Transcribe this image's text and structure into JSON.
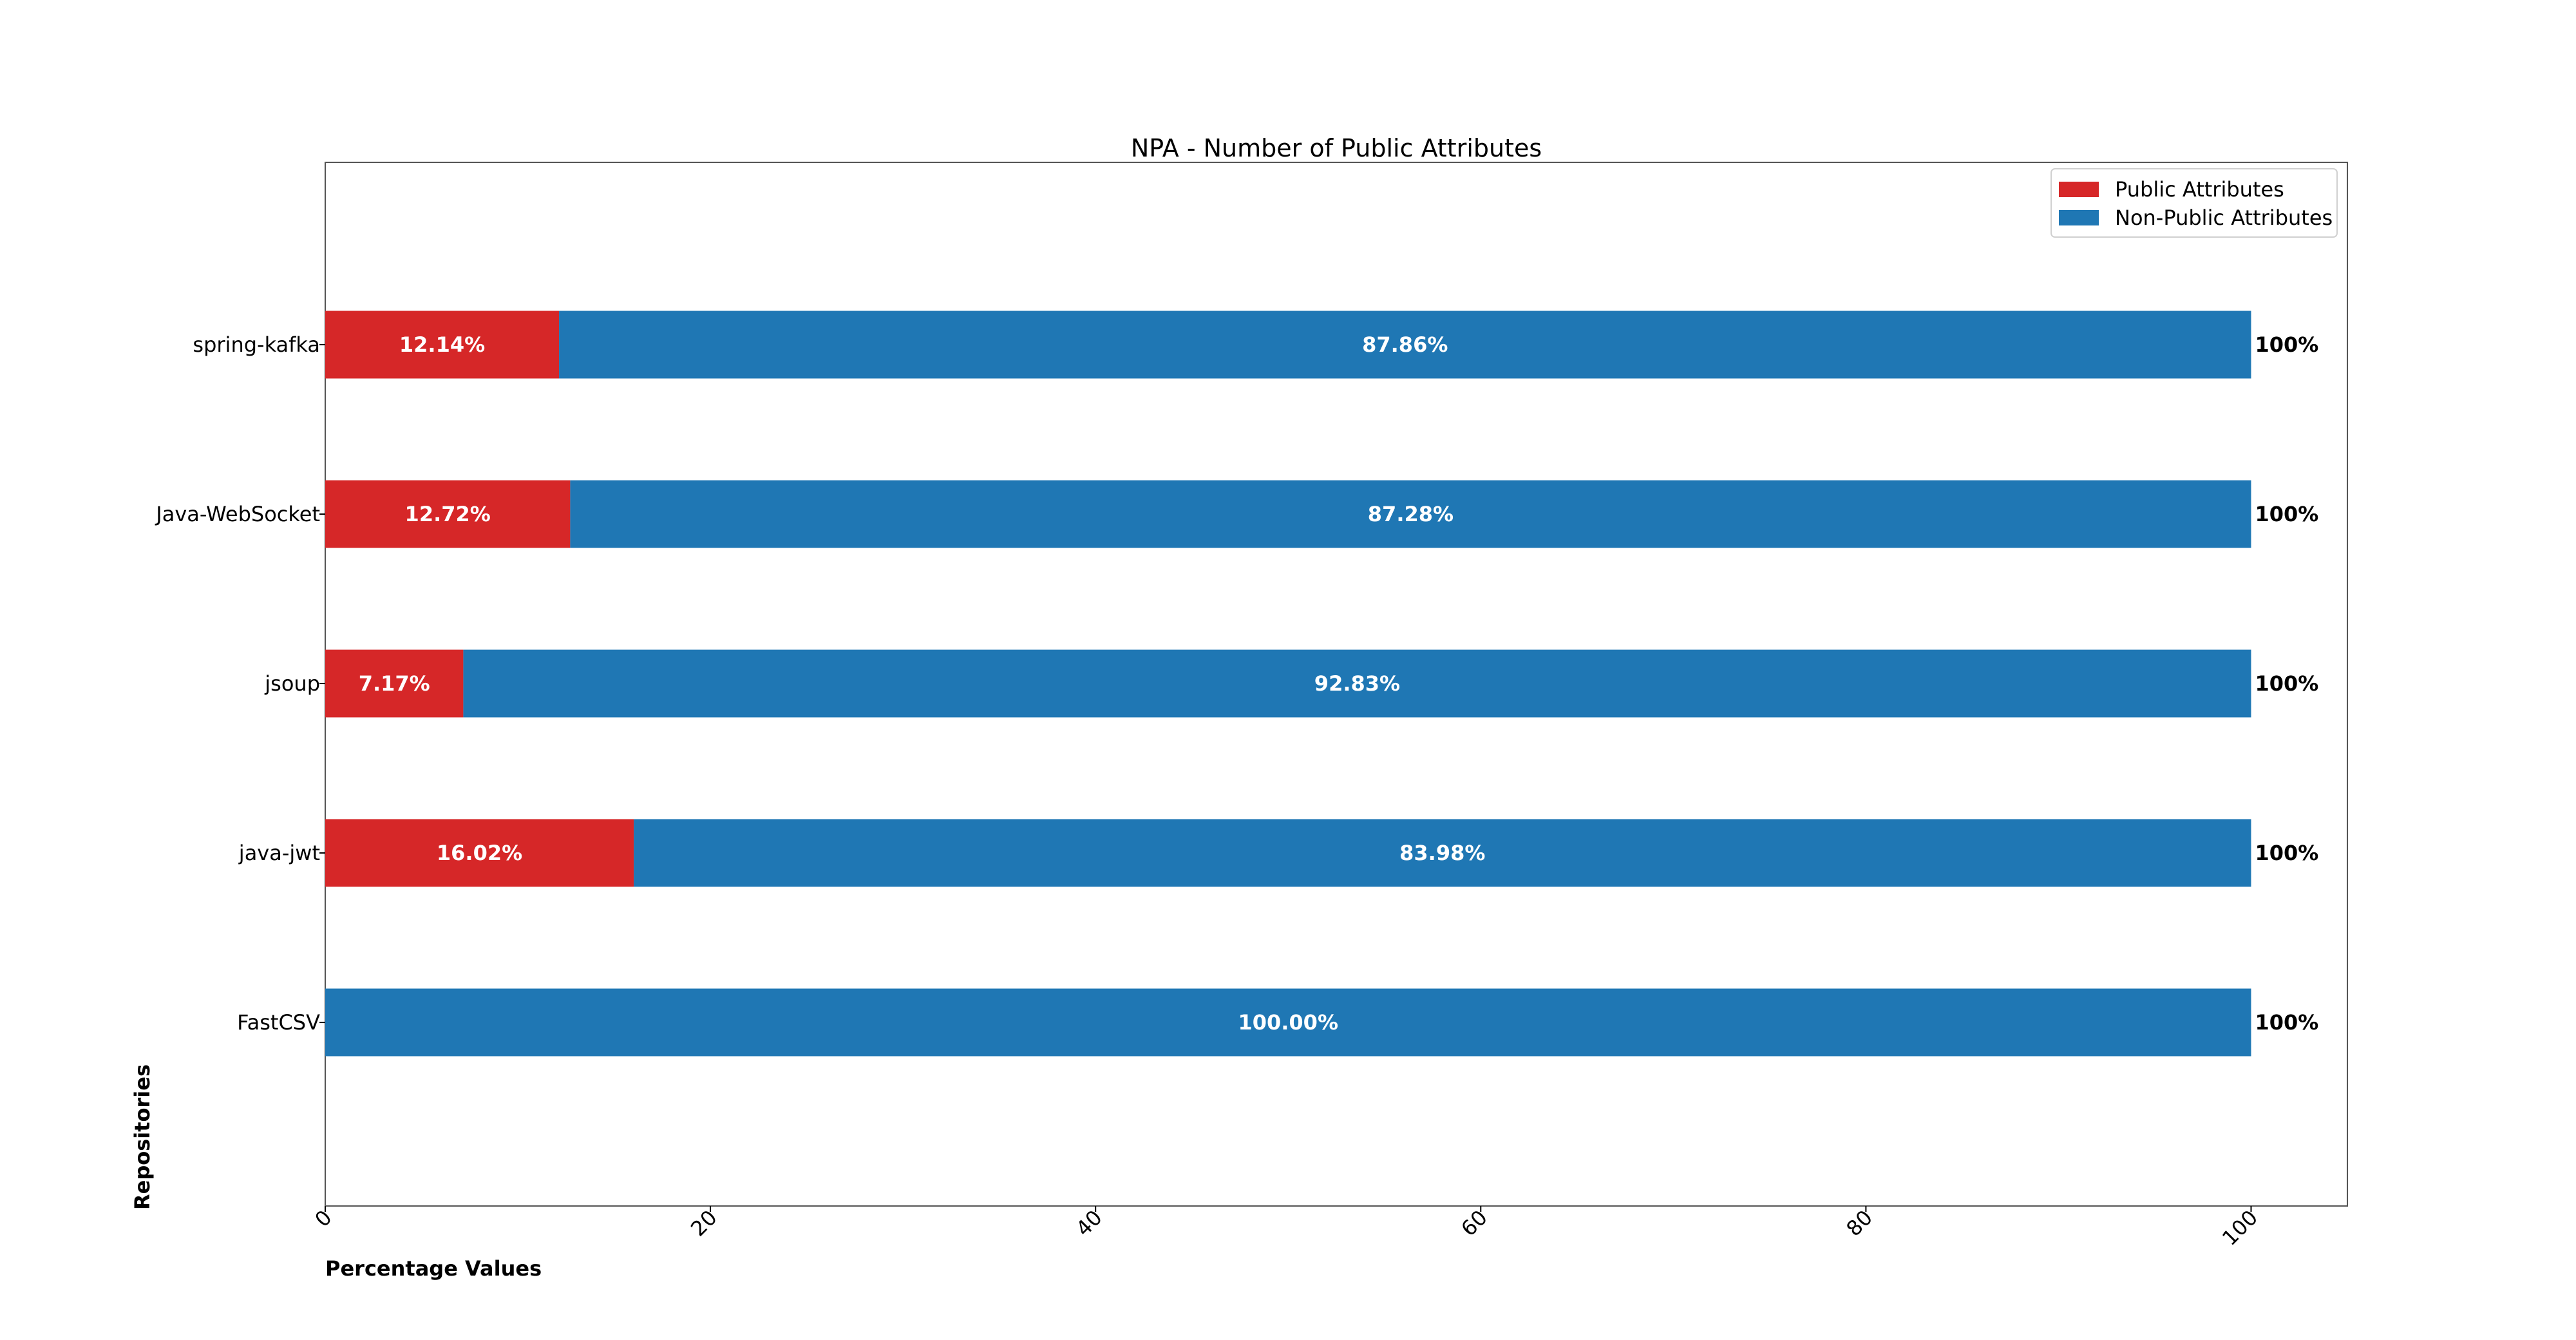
{
  "chart_data": {
    "type": "bar",
    "orientation": "horizontal",
    "stacked": true,
    "title": "NPA - Number of Public Attributes",
    "xlabel": "Percentage Values",
    "ylabel": "Repositories",
    "xlim": [
      0,
      105
    ],
    "xticks": [
      0,
      20,
      40,
      60,
      80,
      100
    ],
    "categories": [
      "spring-kafka",
      "Java-WebSocket",
      "jsoup",
      "java-jwt",
      "FastCSV"
    ],
    "series": [
      {
        "name": "Public Attributes",
        "color": "#d62728",
        "values": [
          12.14,
          12.72,
          7.17,
          16.02,
          0
        ],
        "labels": [
          "12.14%",
          "12.72%",
          "7.17%",
          "16.02%",
          ""
        ]
      },
      {
        "name": "Non-Public Attributes",
        "color": "#1f77b4",
        "values": [
          87.86,
          87.28,
          92.83,
          83.98,
          100.0
        ],
        "labels": [
          "87.86%",
          "87.28%",
          "92.83%",
          "83.98%",
          "100.00%"
        ]
      }
    ],
    "totals": [
      "100%",
      "100%",
      "100%",
      "100%",
      "100%"
    ],
    "legend_position": "top-right",
    "grid": false
  }
}
